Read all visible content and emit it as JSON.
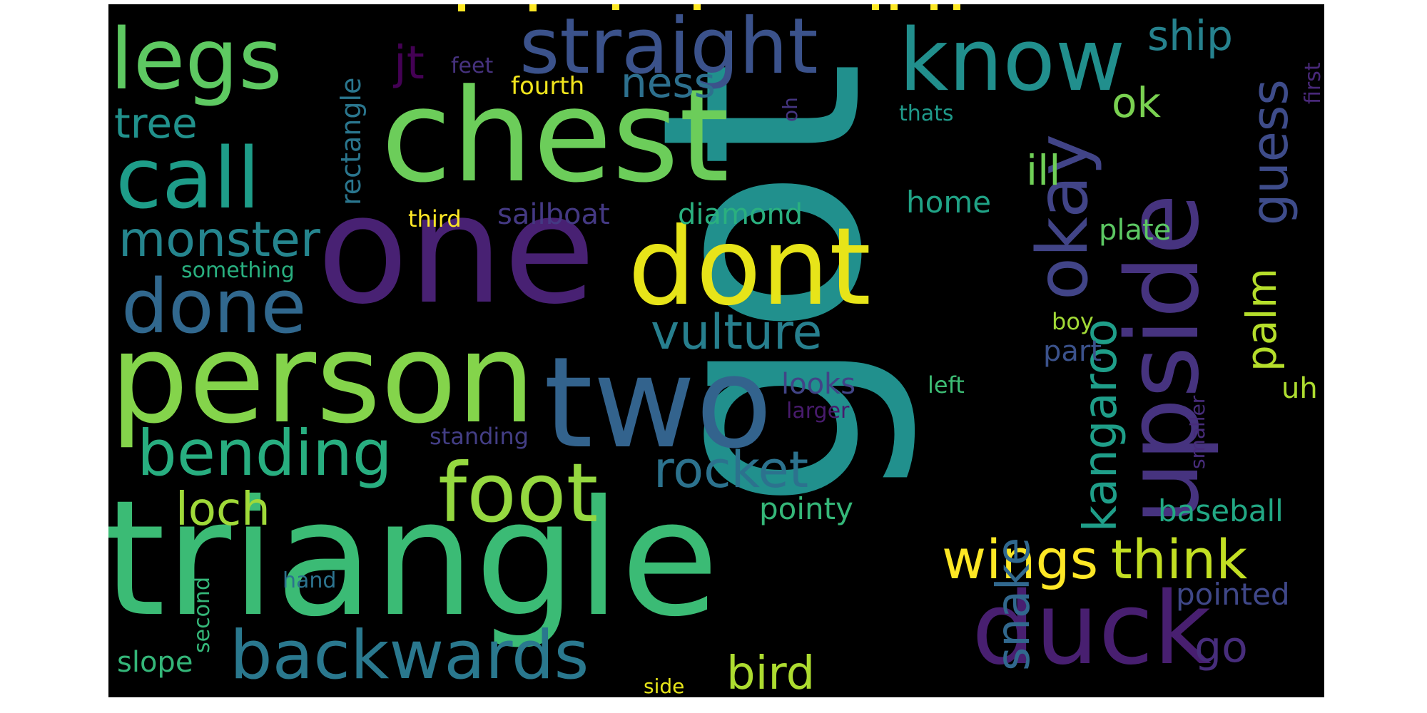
{
  "background_color": "#000000",
  "words": [
    {
      "text": "got",
      "color": "#21908d"
    },
    {
      "text": "triangle",
      "color": "#3bbb75"
    },
    {
      "text": "one",
      "color": "#482173"
    },
    {
      "text": "chest",
      "color": "#6ccd5a"
    },
    {
      "text": "person",
      "color": "#84d44b"
    },
    {
      "text": "two",
      "color": "#33638d"
    },
    {
      "text": "dont",
      "color": "#e7e419"
    },
    {
      "text": "upside",
      "color": "#46337f"
    },
    {
      "text": "duck",
      "color": "#481f70"
    },
    {
      "text": "legs",
      "color": "#5ec962"
    },
    {
      "text": "call",
      "color": "#1e9d89"
    },
    {
      "text": "straight",
      "color": "#3b528b"
    },
    {
      "text": "know",
      "color": "#218f8d"
    },
    {
      "text": "foot",
      "color": "#95d840"
    },
    {
      "text": "done",
      "color": "#31688e"
    },
    {
      "text": "backwards",
      "color": "#2a788e"
    },
    {
      "text": "bending",
      "color": "#28ae80"
    },
    {
      "text": "okay",
      "color": "#414487"
    },
    {
      "text": "wings",
      "color": "#fde725"
    },
    {
      "text": "think",
      "color": "#c2df23"
    },
    {
      "text": "vulture",
      "color": "#277f8e"
    },
    {
      "text": "rocket",
      "color": "#2c728e"
    },
    {
      "text": "monster",
      "color": "#25858e"
    },
    {
      "text": "guess",
      "color": "#3e4c8a"
    },
    {
      "text": "kangaroo",
      "color": "#1f9e89"
    },
    {
      "text": "snake",
      "color": "#31688e"
    },
    {
      "text": "palm",
      "color": "#b5de2b"
    },
    {
      "text": "loch",
      "color": "#a0da39"
    },
    {
      "text": "bird",
      "color": "#addc30"
    },
    {
      "text": "ness",
      "color": "#2d708e"
    },
    {
      "text": "ship",
      "color": "#26828e"
    },
    {
      "text": "tree",
      "color": "#21918c"
    },
    {
      "text": "ok",
      "color": "#7ad151"
    },
    {
      "text": "ill",
      "color": "#70cf57"
    },
    {
      "text": "go",
      "color": "#472d7b"
    },
    {
      "text": "jt",
      "color": "#440154"
    },
    {
      "text": "sailboat",
      "color": "#443983"
    },
    {
      "text": "diamond",
      "color": "#2ab07f"
    },
    {
      "text": "pointy",
      "color": "#35b779"
    },
    {
      "text": "home",
      "color": "#20a386"
    },
    {
      "text": "plate",
      "color": "#5cc863"
    },
    {
      "text": "baseball",
      "color": "#22a884"
    },
    {
      "text": "pointed",
      "color": "#3f4788"
    },
    {
      "text": "uh",
      "color": "#addc30"
    },
    {
      "text": "looks",
      "color": "#414487"
    },
    {
      "text": "part",
      "color": "#3b528b"
    },
    {
      "text": "slope",
      "color": "#34b679"
    },
    {
      "text": "rectangle",
      "color": "#2a768e"
    },
    {
      "text": "fourth",
      "color": "#f1e51d"
    },
    {
      "text": "feet",
      "color": "#46327e"
    },
    {
      "text": "third",
      "color": "#fde725"
    },
    {
      "text": "something",
      "color": "#29af7f"
    },
    {
      "text": "standing",
      "color": "#433e85"
    },
    {
      "text": "larger",
      "color": "#481b6d"
    },
    {
      "text": "left",
      "color": "#3dbc74"
    },
    {
      "text": "boy",
      "color": "#a2da37"
    },
    {
      "text": "thats",
      "color": "#1f9a8a"
    },
    {
      "text": "oh",
      "color": "#453581"
    },
    {
      "text": "first",
      "color": "#482878"
    },
    {
      "text": "smaller",
      "color": "#472c7a"
    },
    {
      "text": "second",
      "color": "#35b779"
    },
    {
      "text": "hand",
      "color": "#2c738e"
    },
    {
      "text": "side",
      "color": "#e5e419"
    }
  ]
}
